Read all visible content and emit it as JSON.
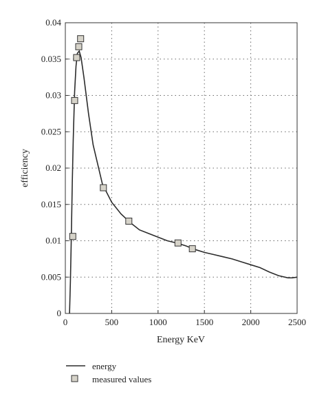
{
  "chart_data": {
    "type": "line",
    "xlabel": "Energy KeV",
    "ylabel": "efficiency",
    "xlim": [
      0,
      2500
    ],
    "ylim": [
      0,
      0.04
    ],
    "xticks": [
      0,
      500,
      1000,
      1500,
      2000,
      2500
    ],
    "yticks": [
      0,
      0.005,
      0.01,
      0.015,
      0.02,
      0.025,
      0.03,
      0.035,
      0.04
    ],
    "xtick_labels": [
      "0",
      "500",
      "1000",
      "1500",
      "2000",
      "2500"
    ],
    "ytick_labels": [
      "0",
      "0.005",
      "0.01",
      "0.015",
      "0.02",
      "0.025",
      "0.03",
      "0.035",
      "0.04"
    ],
    "grid": true,
    "legend_position": "bottom-left",
    "series": [
      {
        "name": "energy",
        "kind": "line",
        "color": "#2b2b2b",
        "x": [
          45,
          55,
          65,
          75,
          85,
          100,
          115,
          130,
          150,
          170,
          200,
          250,
          300,
          400,
          500,
          600,
          700,
          800,
          900,
          1000,
          1100,
          1200,
          1300,
          1400,
          1500,
          1600,
          1700,
          1800,
          1900,
          2000,
          2100,
          2200,
          2300,
          2400,
          2450,
          2500
        ],
        "y": [
          0,
          0.0045,
          0.011,
          0.018,
          0.024,
          0.0305,
          0.034,
          0.0358,
          0.0361,
          0.0352,
          0.0325,
          0.0275,
          0.0232,
          0.0178,
          0.0153,
          0.0137,
          0.0125,
          0.0115,
          0.011,
          0.0105,
          0.01,
          0.0097,
          0.0093,
          0.0088,
          0.0084,
          0.0081,
          0.0078,
          0.0075,
          0.0071,
          0.0067,
          0.0063,
          0.0057,
          0.0052,
          0.0049,
          0.0049,
          0.005
        ]
      },
      {
        "name": "measured values",
        "kind": "scatter",
        "color": "#d6d3c9",
        "x": [
          80,
          100,
          122,
          145,
          165,
          410,
          685,
          1215,
          1370
        ],
        "y": [
          0.0106,
          0.0293,
          0.0352,
          0.0367,
          0.0378,
          0.0173,
          0.0127,
          0.0097,
          0.0089
        ]
      }
    ]
  }
}
